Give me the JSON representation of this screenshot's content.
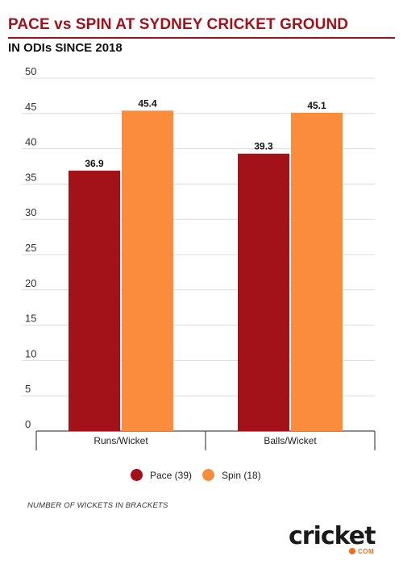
{
  "header": {
    "title": "PACE vs SPIN AT SYDNEY CRICKET GROUND",
    "subtitle": "IN ODIs SINCE 2018"
  },
  "chart_data": {
    "type": "bar",
    "title": "PACE vs SPIN AT SYDNEY CRICKET GROUND",
    "subtitle": "IN ODIs SINCE 2018",
    "categories": [
      "Runs/Wicket",
      "Balls/Wicket"
    ],
    "series": [
      {
        "name": "Pace (39)",
        "values": [
          36.9,
          39.3
        ],
        "color": "#a31219"
      },
      {
        "name": "Spin (18)",
        "values": [
          45.4,
          45.1
        ],
        "color": "#fb8c3c"
      }
    ],
    "ylim": [
      0,
      50
    ],
    "yticks": [
      0,
      5,
      10,
      15,
      20,
      25,
      30,
      35,
      40,
      45,
      50
    ],
    "grid": true,
    "legend_position": "bottom"
  },
  "legend": {
    "items": [
      {
        "label": "Pace (39)",
        "color": "#a31219"
      },
      {
        "label": "Spin (18)",
        "color": "#fb8c3c"
      }
    ]
  },
  "footnote": "NUMBER OF WICKETS IN BRACKETS",
  "logo": {
    "text": "cricket",
    "suffix": "COM"
  }
}
